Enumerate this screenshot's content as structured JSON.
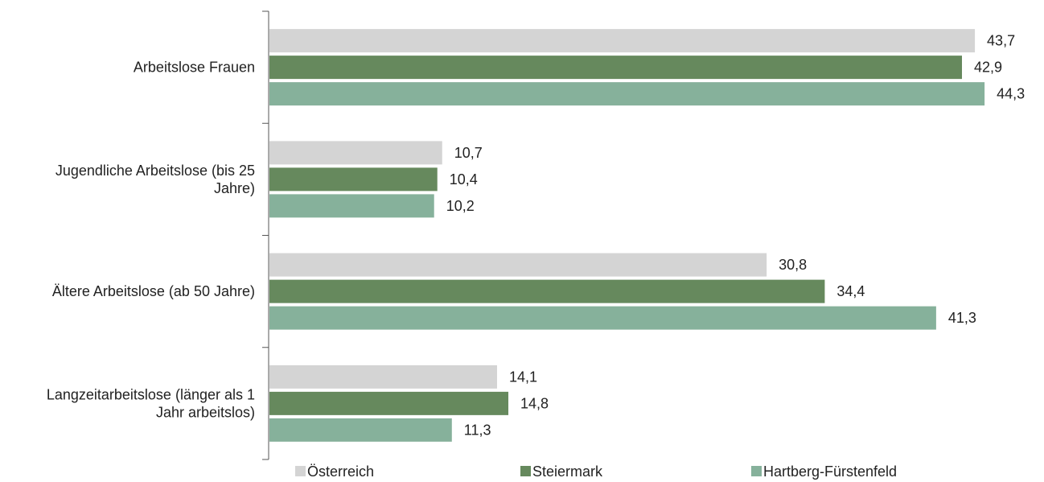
{
  "chart_data": {
    "type": "bar",
    "orientation": "horizontal",
    "categories": [
      [
        "Arbeitslose Frauen"
      ],
      [
        "Jugendliche Arbeitslose (bis 25",
        "Jahre)"
      ],
      [
        "Ältere Arbeitslose (ab 50 Jahre)"
      ],
      [
        "Langzeitarbeitslose (länger als 1",
        "Jahr arbeitslos)"
      ]
    ],
    "series": [
      {
        "name": "Österreich",
        "color": "#d4d4d4",
        "values": [
          43.7,
          10.7,
          30.8,
          14.1
        ],
        "labels": [
          "43,7",
          "10,7",
          "30,8",
          "14,1"
        ]
      },
      {
        "name": "Steiermark",
        "color": "#66895d",
        "values": [
          42.9,
          10.4,
          34.4,
          14.8
        ],
        "labels": [
          "42,9",
          "10,4",
          "34,4",
          "14,8"
        ]
      },
      {
        "name": "Hartberg-Fürstenfeld",
        "color": "#86b19b",
        "values": [
          44.3,
          10.2,
          41.3,
          11.3
        ],
        "labels": [
          "44,3",
          "10,2",
          "41,3",
          "11,3"
        ]
      }
    ],
    "xlim": [
      0,
      45
    ],
    "grid": false,
    "legend_position": "bottom",
    "title": "",
    "xlabel": "",
    "ylabel": ""
  }
}
